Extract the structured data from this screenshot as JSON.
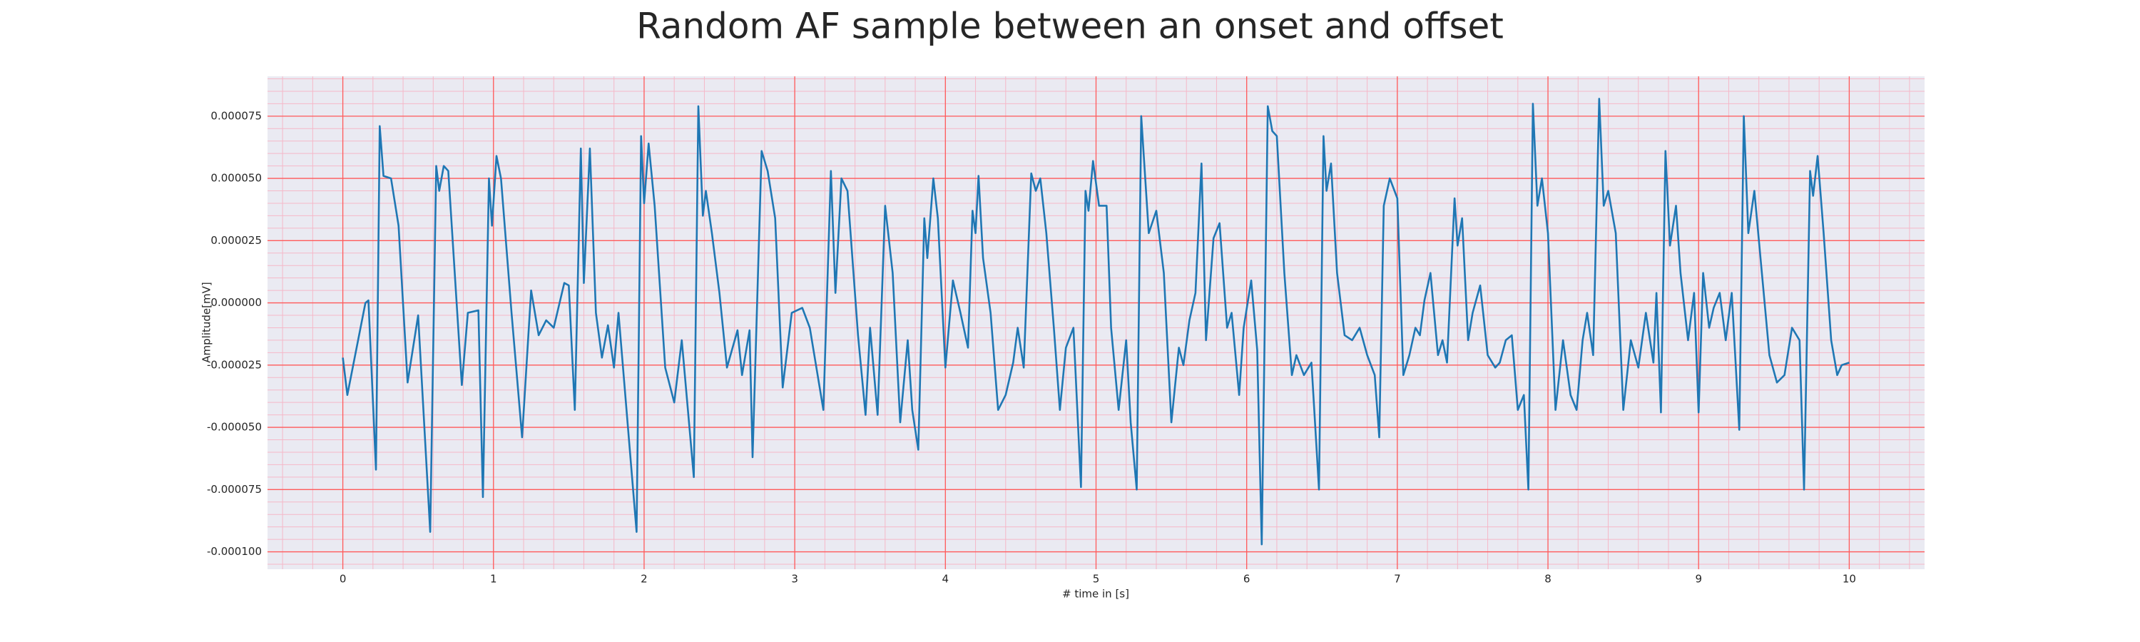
{
  "chart_data": {
    "type": "line",
    "title": "Random AF sample between an onset and offset",
    "x_label": "# time in [s]",
    "y_label": "Amplitude[mV]",
    "color": "#1f77b4",
    "background": "#eaeaf2",
    "grid": true,
    "grid_color": "#ff5b5b",
    "minor_grid": true,
    "minor_grid_color": "#f5b8c8",
    "xlim": [
      -0.5,
      10.5
    ],
    "ylim": [
      -0.000107,
      9.1e-05
    ],
    "xticks": [
      0,
      1,
      2,
      3,
      4,
      5,
      6,
      7,
      8,
      9,
      10
    ],
    "yticks": [
      {
        "value": -0.0001,
        "label": "-0.000100"
      },
      {
        "value": -7.5e-05,
        "label": "-0.000075"
      },
      {
        "value": -5e-05,
        "label": "-0.000050"
      },
      {
        "value": -2.5e-05,
        "label": "-0.000025"
      },
      {
        "value": 0,
        "label": "0.000000"
      },
      {
        "value": 2.5e-05,
        "label": "0.000025"
      },
      {
        "value": 5e-05,
        "label": "0.000050"
      },
      {
        "value": 7.5e-05,
        "label": "0.000075"
      }
    ],
    "x": [
      0,
      0.03,
      0.15,
      0.17,
      0.22,
      0.245,
      0.27,
      0.32,
      0.37,
      0.43,
      0.5,
      0.58,
      0.62,
      0.64,
      0.67,
      0.7,
      0.79,
      0.83,
      0.9,
      0.93,
      0.97,
      0.99,
      1.02,
      1.05,
      1.12,
      1.19,
      1.25,
      1.3,
      1.35,
      1.4,
      1.47,
      1.5,
      1.54,
      1.58,
      1.6,
      1.64,
      1.68,
      1.72,
      1.76,
      1.8,
      1.83,
      1.95,
      1.98,
      2.0,
      2.03,
      2.07,
      2.14,
      2.2,
      2.25,
      2.33,
      2.36,
      2.39,
      2.41,
      2.45,
      2.5,
      2.55,
      2.62,
      2.65,
      2.7,
      2.72,
      2.78,
      2.82,
      2.87,
      2.92,
      2.98,
      3.05,
      3.1,
      3.19,
      3.24,
      3.27,
      3.31,
      3.35,
      3.42,
      3.47,
      3.5,
      3.55,
      3.6,
      3.65,
      3.7,
      3.75,
      3.78,
      3.82,
      3.86,
      3.88,
      3.92,
      3.95,
      4.0,
      4.05,
      4.1,
      4.15,
      4.18,
      4.2,
      4.22,
      4.25,
      4.3,
      4.35,
      4.4,
      4.45,
      4.48,
      4.52,
      4.57,
      4.6,
      4.63,
      4.67,
      4.72,
      4.76,
      4.8,
      4.85,
      4.9,
      4.93,
      4.95,
      4.98,
      5.02,
      5.07,
      5.1,
      5.15,
      5.2,
      5.23,
      5.27,
      5.3,
      5.35,
      5.4,
      5.45,
      5.5,
      5.55,
      5.58,
      5.62,
      5.66,
      5.7,
      5.73,
      5.78,
      5.82,
      5.87,
      5.9,
      5.95,
      5.98,
      6.03,
      6.07,
      6.1,
      6.14,
      6.17,
      6.2,
      6.25,
      6.3,
      6.33,
      6.38,
      6.43,
      6.48,
      6.51,
      6.53,
      6.56,
      6.6,
      6.65,
      6.7,
      6.75,
      6.8,
      6.85,
      6.88,
      6.91,
      6.95,
      7.0,
      7.04,
      7.08,
      7.12,
      7.15,
      7.18,
      7.22,
      7.27,
      7.3,
      7.33,
      7.38,
      7.4,
      7.43,
      7.47,
      7.5,
      7.55,
      7.6,
      7.65,
      7.68,
      7.72,
      7.76,
      7.8,
      7.84,
      7.87,
      7.9,
      7.93,
      7.96,
      8.0,
      8.05,
      8.1,
      8.15,
      8.19,
      8.23,
      8.26,
      8.3,
      8.34,
      8.37,
      8.4,
      8.45,
      8.5,
      8.55,
      8.6,
      8.65,
      8.7,
      8.72,
      8.75,
      8.78,
      8.81,
      8.85,
      8.88,
      8.93,
      8.97,
      9.0,
      9.03,
      9.07,
      9.1,
      9.14,
      9.18,
      9.22,
      9.27,
      9.3,
      9.33,
      9.37,
      9.42,
      9.47,
      9.52,
      9.57,
      9.62,
      9.67,
      9.7,
      9.74,
      9.76,
      9.79,
      9.83,
      9.88,
      9.92,
      9.95,
      10.0
    ],
    "values": [
      -2.2e-05,
      -3.7e-05,
      0,
      1e-06,
      -6.7e-05,
      7.1e-05,
      5.1e-05,
      5e-05,
      3.1e-05,
      -3.2e-05,
      -5e-06,
      -9.2e-05,
      5.5e-05,
      4.5e-05,
      5.5e-05,
      5.3e-05,
      -3.3e-05,
      -4e-06,
      -3e-06,
      -7.8e-05,
      5e-05,
      3.1e-05,
      5.9e-05,
      5e-05,
      -4e-06,
      -5.4e-05,
      5e-06,
      -1.3e-05,
      -7e-06,
      -1e-05,
      8e-06,
      7e-06,
      -4.3e-05,
      6.2e-05,
      8e-06,
      6.2e-05,
      -4e-06,
      -2.2e-05,
      -9e-06,
      -2.6e-05,
      -4e-06,
      -9.2e-05,
      6.7e-05,
      4e-05,
      6.4e-05,
      3.9e-05,
      -2.6e-05,
      -4e-05,
      -1.5e-05,
      -7e-05,
      7.9e-05,
      3.5e-05,
      4.5e-05,
      2.8e-05,
      4e-06,
      -2.6e-05,
      -1.1e-05,
      -2.9e-05,
      -1.1e-05,
      -6.2e-05,
      6.1e-05,
      5.3e-05,
      3.4e-05,
      -3.4e-05,
      -4e-06,
      -2e-06,
      -1e-05,
      -4.3e-05,
      5.3e-05,
      4e-06,
      5e-05,
      4.5e-05,
      -1.3e-05,
      -4.5e-05,
      -1e-05,
      -4.5e-05,
      3.9e-05,
      1.2e-05,
      -4.8e-05,
      -1.5e-05,
      -4.3e-05,
      -5.9e-05,
      3.4e-05,
      1.8e-05,
      5e-05,
      3.4e-05,
      -2.6e-05,
      9e-06,
      -4e-06,
      -1.8e-05,
      3.7e-05,
      2.8e-05,
      5.1e-05,
      1.8e-05,
      -4e-06,
      -4.3e-05,
      -3.7e-05,
      -2.4e-05,
      -1e-05,
      -2.6e-05,
      5.2e-05,
      4.5e-05,
      5e-05,
      2.8e-05,
      -1e-05,
      -4.3e-05,
      -1.8e-05,
      -1e-05,
      -7.4e-05,
      4.5e-05,
      3.7e-05,
      5.7e-05,
      3.9e-05,
      3.9e-05,
      -1e-05,
      -4.3e-05,
      -1.5e-05,
      -4.8e-05,
      -7.5e-05,
      7.5e-05,
      2.8e-05,
      3.7e-05,
      1.2e-05,
      -4.8e-05,
      -1.8e-05,
      -2.5e-05,
      -7e-06,
      4e-06,
      5.6e-05,
      -1.5e-05,
      2.6e-05,
      3.2e-05,
      -1e-05,
      -4e-06,
      -3.7e-05,
      -1e-05,
      9e-06,
      -1.9e-05,
      -9.7e-05,
      7.9e-05,
      6.9e-05,
      6.7e-05,
      1.2e-05,
      -2.9e-05,
      -2.1e-05,
      -2.9e-05,
      -2.4e-05,
      -7.5e-05,
      6.7e-05,
      4.5e-05,
      5.6e-05,
      1.2e-05,
      -1.3e-05,
      -1.5e-05,
      -1e-05,
      -2.1e-05,
      -2.9e-05,
      -5.4e-05,
      3.9e-05,
      5e-05,
      4.2e-05,
      -2.9e-05,
      -2.1e-05,
      -1e-05,
      -1.3e-05,
      1e-06,
      1.2e-05,
      -2.1e-05,
      -1.5e-05,
      -2.4e-05,
      4.2e-05,
      2.3e-05,
      3.4e-05,
      -1.5e-05,
      -4e-06,
      7e-06,
      -2.1e-05,
      -2.6e-05,
      -2.4e-05,
      -1.5e-05,
      -1.3e-05,
      -4.3e-05,
      -3.7e-05,
      -7.5e-05,
      8e-05,
      3.9e-05,
      5e-05,
      2.8e-05,
      -4.3e-05,
      -1.5e-05,
      -3.7e-05,
      -4.3e-05,
      -1.5e-05,
      -4e-06,
      -2.1e-05,
      8.2e-05,
      3.9e-05,
      4.5e-05,
      2.8e-05,
      -4.3e-05,
      -1.5e-05,
      -2.6e-05,
      -4e-06,
      -2.4e-05,
      4e-06,
      -4.4e-05,
      6.1e-05,
      2.3e-05,
      3.9e-05,
      1.2e-05,
      -1.5e-05,
      4e-06,
      -4.4e-05,
      1.2e-05,
      -1e-05,
      -2e-06,
      4e-06,
      -1.5e-05,
      4e-06,
      -5.1e-05,
      7.5e-05,
      2.8e-05,
      4.5e-05,
      1.2e-05,
      -2.1e-05,
      -3.2e-05,
      -2.9e-05,
      -1e-05,
      -1.5e-05,
      -7.5e-05,
      5.3e-05,
      4.3e-05,
      5.9e-05,
      2.8e-05,
      -1.5e-05,
      -2.9e-05,
      -2.5e-05,
      -2.4e-05
    ]
  }
}
